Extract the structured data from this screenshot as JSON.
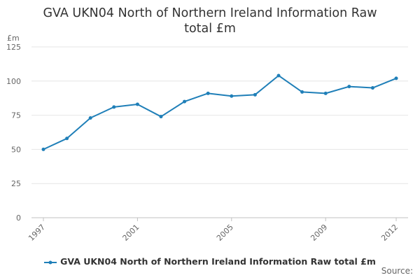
{
  "chart_data": {
    "type": "line",
    "title_lines": [
      "GVA UKN04 North of Northern Ireland Information Raw",
      "total £m"
    ],
    "ylabel": "£m",
    "xlabel": "",
    "ylim": [
      0,
      125
    ],
    "yticks": [
      0,
      25,
      50,
      75,
      100,
      125
    ],
    "xticks": [
      1997,
      2001,
      2005,
      2009,
      2012
    ],
    "grid": true,
    "legend_position": "bottom-center",
    "series": [
      {
        "name": "GVA UKN04 North of Northern Ireland Information Raw total £m",
        "color": "#1f7fb8",
        "x": [
          1997,
          1998,
          1999,
          2000,
          2001,
          2002,
          2003,
          2004,
          2005,
          2006,
          2007,
          2008,
          2009,
          2010,
          2011,
          2012
        ],
        "values": [
          50,
          58,
          73,
          81,
          83,
          74,
          85,
          91,
          89,
          90,
          104,
          92,
          91,
          96,
          95,
          102
        ]
      }
    ]
  },
  "footer": {
    "source_label": "Source:"
  }
}
